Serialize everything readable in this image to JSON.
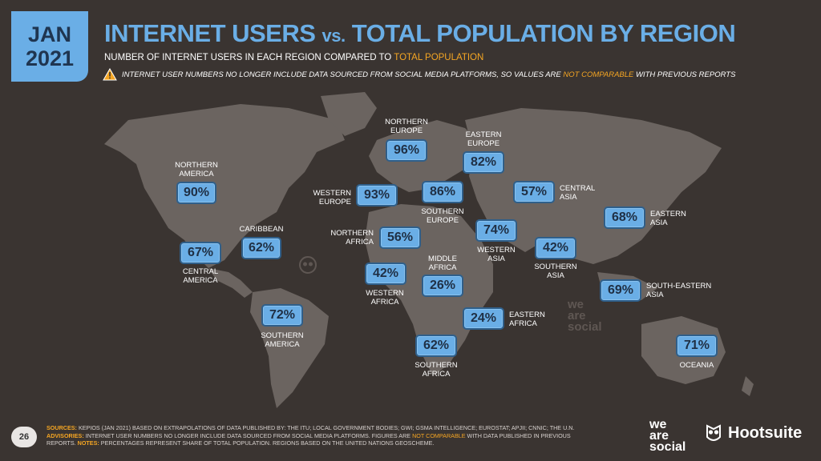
{
  "header": {
    "date_month": "JAN",
    "date_year": "2021",
    "title_part1": "INTERNET USERS",
    "title_vs": "vs.",
    "title_part2": "TOTAL POPULATION BY REGION",
    "subtitle_prefix": "NUMBER OF INTERNET USERS IN EACH REGION COMPARED TO",
    "subtitle_highlight": "TOTAL POPULATION",
    "warning_prefix": "INTERNET USER NUMBERS NO LONGER INCLUDE DATA SOURCED FROM SOCIAL MEDIA PLATFORMS, SO VALUES ARE",
    "warning_highlight": "NOT COMPARABLE",
    "warning_suffix": "WITH PREVIOUS REPORTS",
    "warning_icon": "warning-triangle-icon"
  },
  "regions": [
    {
      "id": "northern-america",
      "value": "90%",
      "label_line1": "NORTHERN",
      "label_line2": "AMERICA"
    },
    {
      "id": "central-america",
      "value": "67%",
      "label_line1": "CENTRAL",
      "label_line2": "AMERICA"
    },
    {
      "id": "caribbean",
      "value": "62%",
      "label_line1": "CARIBBEAN",
      "label_line2": ""
    },
    {
      "id": "south-america",
      "value": "72%",
      "label_line1": "SOUTHERN",
      "label_line2": "AMERICA"
    },
    {
      "id": "northern-europe",
      "value": "96%",
      "label_line1": "NORTHERN",
      "label_line2": "EUROPE"
    },
    {
      "id": "western-europe",
      "value": "93%",
      "label_line1": "WESTERN",
      "label_line2": "EUROPE"
    },
    {
      "id": "southern-europe",
      "value": "86%",
      "label_line1": "SOUTHERN",
      "label_line2": "EUROPE"
    },
    {
      "id": "eastern-europe",
      "value": "82%",
      "label_line1": "EASTERN",
      "label_line2": "EUROPE"
    },
    {
      "id": "northern-africa",
      "value": "56%",
      "label_line1": "NORTHERN",
      "label_line2": "AFRICA"
    },
    {
      "id": "western-africa",
      "value": "42%",
      "label_line1": "WESTERN",
      "label_line2": "AFRICA"
    },
    {
      "id": "middle-africa",
      "value": "26%",
      "label_line1": "MIDDLE",
      "label_line2": "AFRICA"
    },
    {
      "id": "eastern-africa",
      "value": "24%",
      "label_line1": "EASTERN",
      "label_line2": "AFRICA"
    },
    {
      "id": "southern-africa",
      "value": "62%",
      "label_line1": "SOUTHERN",
      "label_line2": "AFRICA"
    },
    {
      "id": "western-asia",
      "value": "74%",
      "label_line1": "WESTERN",
      "label_line2": "ASIA"
    },
    {
      "id": "central-asia",
      "value": "57%",
      "label_line1": "CENTRAL",
      "label_line2": "ASIA"
    },
    {
      "id": "southern-asia",
      "value": "42%",
      "label_line1": "SOUTHERN",
      "label_line2": "ASIA"
    },
    {
      "id": "eastern-asia",
      "value": "68%",
      "label_line1": "EASTERN",
      "label_line2": "ASIA"
    },
    {
      "id": "south-eastern-asia",
      "value": "69%",
      "label_line1": "SOUTH-EASTERN",
      "label_line2": "ASIA"
    },
    {
      "id": "oceania",
      "value": "71%",
      "label_line1": "OCEANIA",
      "label_line2": ""
    }
  ],
  "watermark_text": [
    "we",
    "are",
    "social"
  ],
  "footer": {
    "page_number": "26",
    "sources_label": "SOURCES:",
    "sources_text": "KEPIOS (JAN 2021) BASED ON EXTRAPOLATIONS OF DATA PUBLISHED BY: THE ITU; LOCAL GOVERNMENT BODIES; GWI; GSMA INTELLIGENCE; EUROSTAT; APJII; CNNIC; THE U.N.",
    "advisories_label": "ADVISORIES:",
    "advisories_text": "INTERNET USER NUMBERS NO LONGER INCLUDE DATA SOURCED FROM SOCIAL MEDIA PLATFORMS. FIGURES ARE",
    "advisories_highlight": "NOT COMPARABLE",
    "advisories_suffix": "WITH DATA PUBLISHED IN PREVIOUS",
    "reports_text": "REPORTS.",
    "notes_label": "NOTES:",
    "notes_text": "PERCENTAGES REPRESENT SHARE OF TOTAL POPULATION. REGIONS BASED ON THE UNITED NATIONS GEOSCHEME.",
    "logo_we": "we",
    "logo_are": "are",
    "logo_social": "social",
    "logo_hootsuite": "Hootsuite"
  },
  "colors": {
    "background": "#3a3431",
    "map": "#6b6460",
    "accent_blue": "#6aaee6",
    "highlight_orange": "#f5a623"
  }
}
